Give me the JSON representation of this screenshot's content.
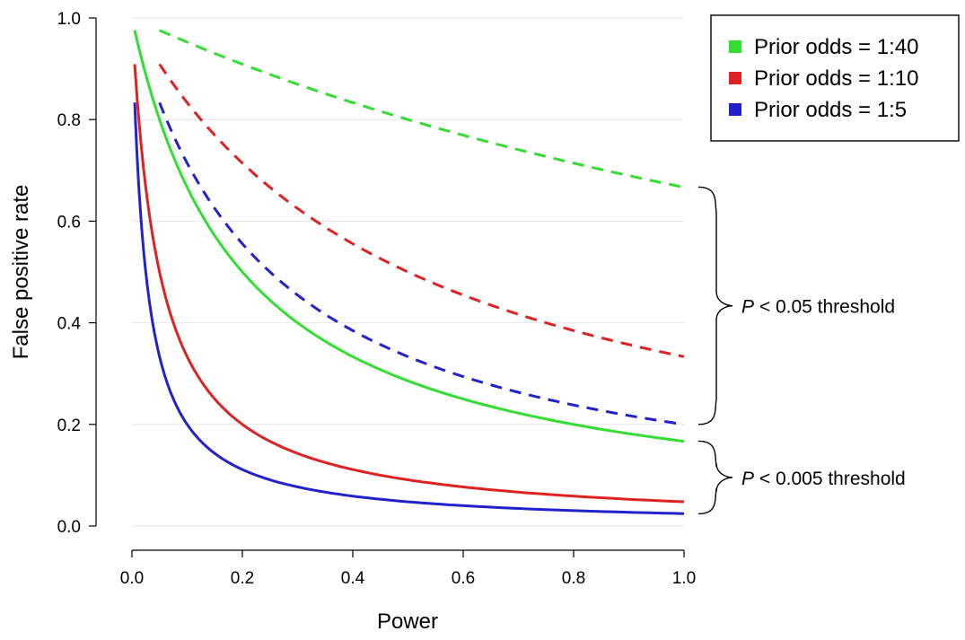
{
  "chart_data": {
    "type": "line",
    "title": "",
    "xlabel": "Power",
    "ylabel": "False positive rate",
    "xlim": [
      0,
      1
    ],
    "ylim": [
      0,
      1
    ],
    "xticks": [
      "0.0",
      "0.2",
      "0.4",
      "0.6",
      "0.8",
      "1.0"
    ],
    "yticks": [
      "0.0",
      "0.2",
      "0.4",
      "0.6",
      "0.8",
      "1.0"
    ],
    "grid": "horizontal",
    "legend_position": "top-right",
    "legend": [
      {
        "label": "Prior odds = 1:40",
        "color": "#33dd33"
      },
      {
        "label": "Prior odds = 1:10",
        "color": "#dd2222"
      },
      {
        "label": "Prior odds = 1:5",
        "color": "#2222cc"
      }
    ],
    "series": [
      {
        "legend_index": 0,
        "style": "dashed",
        "color": "#33dd33",
        "threshold": 0.05,
        "prior_ratio": 40,
        "x": [
          0.05,
          0.1,
          0.2,
          0.3,
          0.4,
          0.5,
          0.6,
          0.7,
          0.8,
          0.9,
          1.0
        ],
        "y": [
          0.976,
          0.952,
          0.909,
          0.87,
          0.833,
          0.8,
          0.769,
          0.741,
          0.714,
          0.69,
          0.667
        ]
      },
      {
        "legend_index": 1,
        "style": "dashed",
        "color": "#dd2222",
        "threshold": 0.05,
        "prior_ratio": 10,
        "x": [
          0.05,
          0.1,
          0.2,
          0.3,
          0.4,
          0.5,
          0.6,
          0.7,
          0.8,
          0.9,
          1.0
        ],
        "y": [
          0.909,
          0.833,
          0.714,
          0.625,
          0.556,
          0.5,
          0.455,
          0.417,
          0.385,
          0.357,
          0.333
        ]
      },
      {
        "legend_index": 2,
        "style": "dashed",
        "color": "#2222cc",
        "threshold": 0.05,
        "prior_ratio": 5,
        "x": [
          0.05,
          0.1,
          0.2,
          0.3,
          0.4,
          0.5,
          0.6,
          0.7,
          0.8,
          0.9,
          1.0
        ],
        "y": [
          0.833,
          0.714,
          0.556,
          0.455,
          0.385,
          0.333,
          0.294,
          0.263,
          0.238,
          0.217,
          0.2
        ]
      },
      {
        "legend_index": 0,
        "style": "solid",
        "color": "#33dd33",
        "threshold": 0.005,
        "prior_ratio": 40,
        "x": [
          0.005,
          0.01,
          0.05,
          0.1,
          0.2,
          0.3,
          0.4,
          0.5,
          0.6,
          0.7,
          0.8,
          0.9,
          1.0
        ],
        "y": [
          0.976,
          0.952,
          0.8,
          0.667,
          0.5,
          0.4,
          0.333,
          0.286,
          0.25,
          0.222,
          0.2,
          0.182,
          0.167
        ]
      },
      {
        "legend_index": 1,
        "style": "solid",
        "color": "#dd2222",
        "threshold": 0.005,
        "prior_ratio": 10,
        "x": [
          0.005,
          0.01,
          0.05,
          0.1,
          0.2,
          0.3,
          0.4,
          0.5,
          0.6,
          0.7,
          0.8,
          0.9,
          1.0
        ],
        "y": [
          0.909,
          0.833,
          0.5,
          0.333,
          0.2,
          0.143,
          0.111,
          0.091,
          0.077,
          0.067,
          0.059,
          0.053,
          0.048
        ]
      },
      {
        "legend_index": 2,
        "style": "solid",
        "color": "#2222cc",
        "threshold": 0.005,
        "prior_ratio": 5,
        "x": [
          0.005,
          0.01,
          0.05,
          0.1,
          0.2,
          0.3,
          0.4,
          0.5,
          0.6,
          0.7,
          0.8,
          0.9,
          1.0
        ],
        "y": [
          0.833,
          0.714,
          0.333,
          0.2,
          0.111,
          0.077,
          0.059,
          0.048,
          0.04,
          0.034,
          0.03,
          0.027,
          0.024
        ]
      }
    ],
    "annotations": [
      {
        "p": "P",
        "text": " < 0.05 threshold",
        "y_range": [
          0.2,
          0.667
        ]
      },
      {
        "p": "P",
        "text": " < 0.005 threshold",
        "y_range": [
          0.024,
          0.167
        ]
      }
    ]
  }
}
